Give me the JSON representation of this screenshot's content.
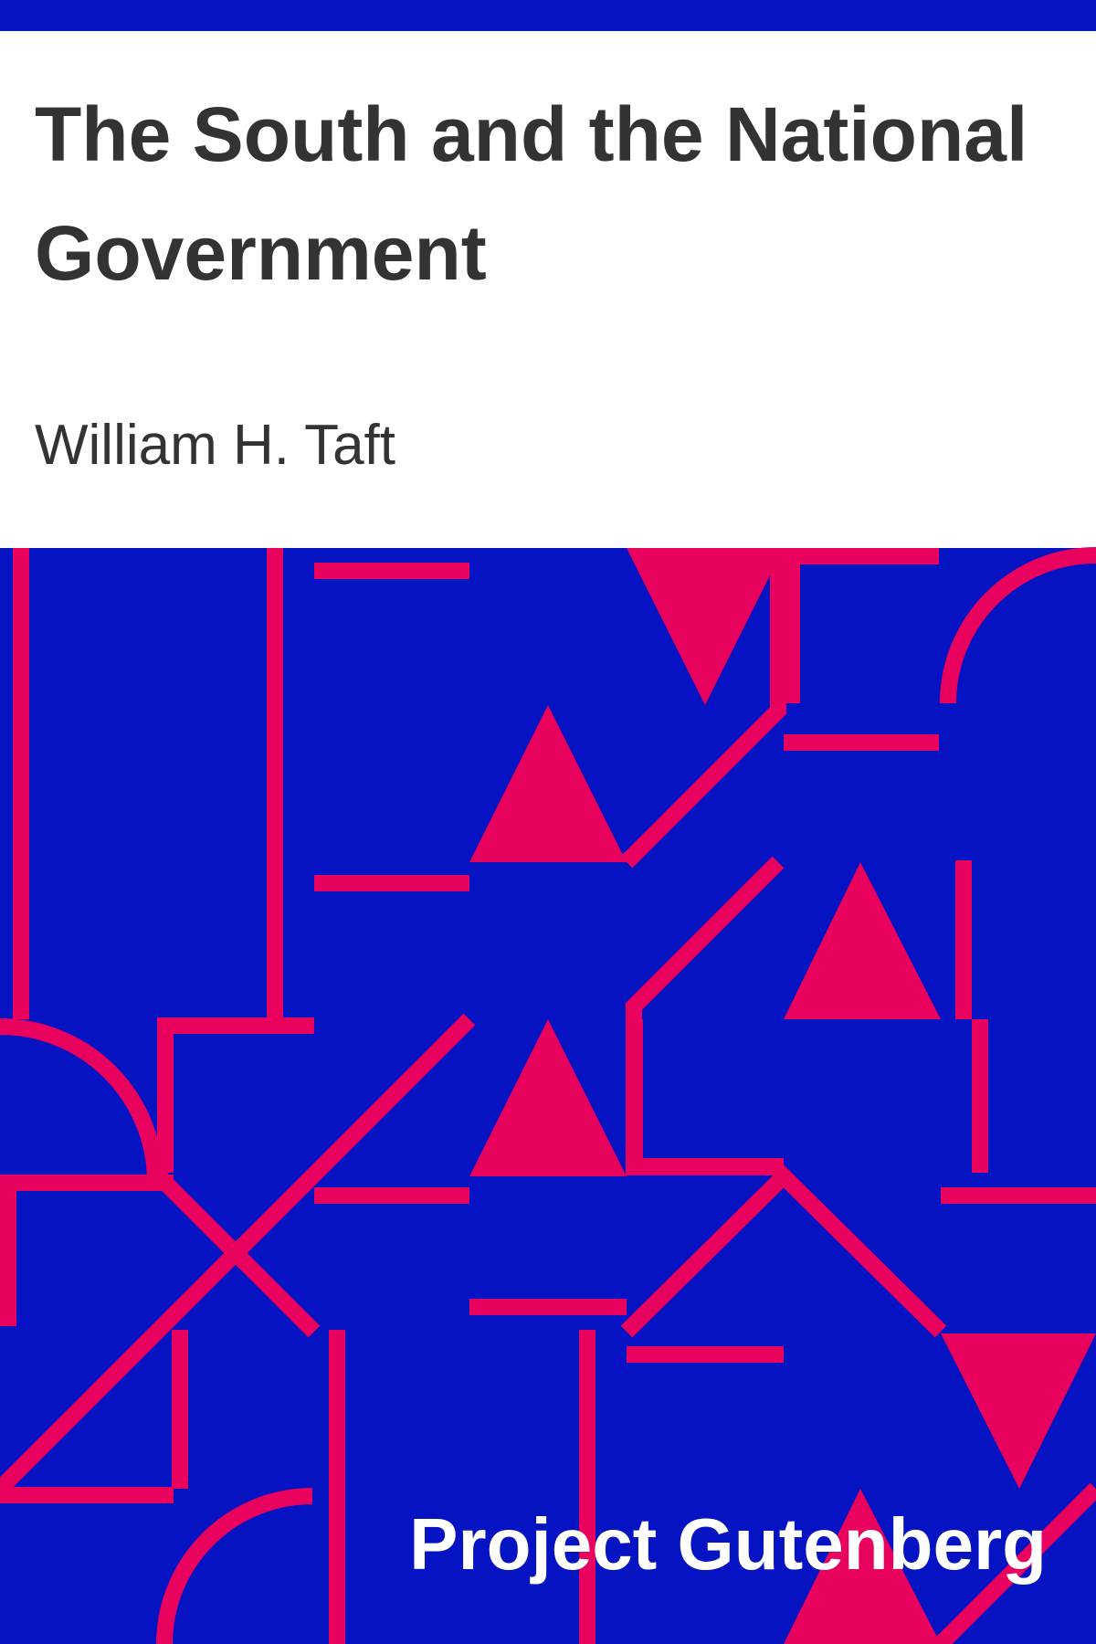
{
  "cover": {
    "title_lines": [
      "The South and the National",
      "Government"
    ],
    "author": "William H. Taft",
    "publisher": "Project Gutenberg"
  },
  "colors": {
    "background": "#ffffff",
    "pattern_blue": "#0513c2",
    "pattern_pink": "#e8025d",
    "title_text": "#333333",
    "publisher_text": "#ffffff"
  }
}
